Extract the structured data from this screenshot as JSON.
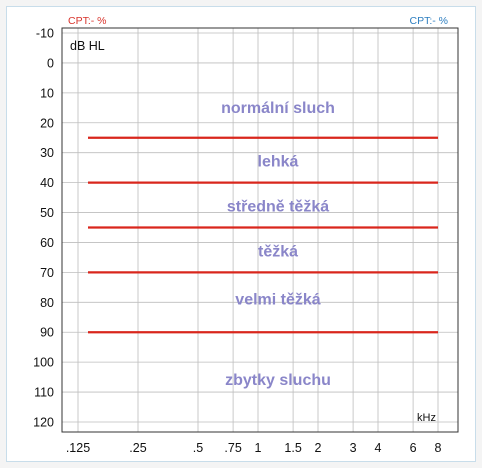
{
  "header": {
    "cpt_left": "CPT:- %",
    "cpt_right": "CPT:- %",
    "cpt_left_color": "#d8342c",
    "cpt_right_color": "#2f7fc0"
  },
  "chart_data": {
    "type": "line",
    "unit_label": "dB HL",
    "xlabel": "kHz",
    "x_ticks": [
      ".125",
      ".25",
      ".5",
      ".75",
      "1",
      "1.5",
      "2",
      "3",
      "4",
      "6",
      "8"
    ],
    "x_values_khz": [
      0.125,
      0.25,
      0.5,
      0.75,
      1,
      1.5,
      2,
      3,
      4,
      6,
      8
    ],
    "y_ticks": [
      -10,
      0,
      10,
      20,
      30,
      40,
      50,
      60,
      70,
      80,
      90,
      100,
      110,
      120
    ],
    "ylim": [
      -10,
      120
    ],
    "y_inverted": true,
    "x_scale": "log",
    "grid": true,
    "line_color": "#d9261c",
    "band_label_color": "#8a86c9",
    "thresholds_db": [
      25,
      40,
      55,
      70,
      90
    ],
    "threshold_x_range_khz": [
      0.125,
      8
    ],
    "bands": [
      {
        "label": "normální sluch",
        "center_db": 15
      },
      {
        "label": "lehká",
        "center_db": 33
      },
      {
        "label": "středně těžká",
        "center_db": 48
      },
      {
        "label": "těžká",
        "center_db": 63
      },
      {
        "label": "velmi těžká",
        "center_db": 79
      },
      {
        "label": "zbytky sluchu",
        "center_db": 106
      }
    ]
  }
}
